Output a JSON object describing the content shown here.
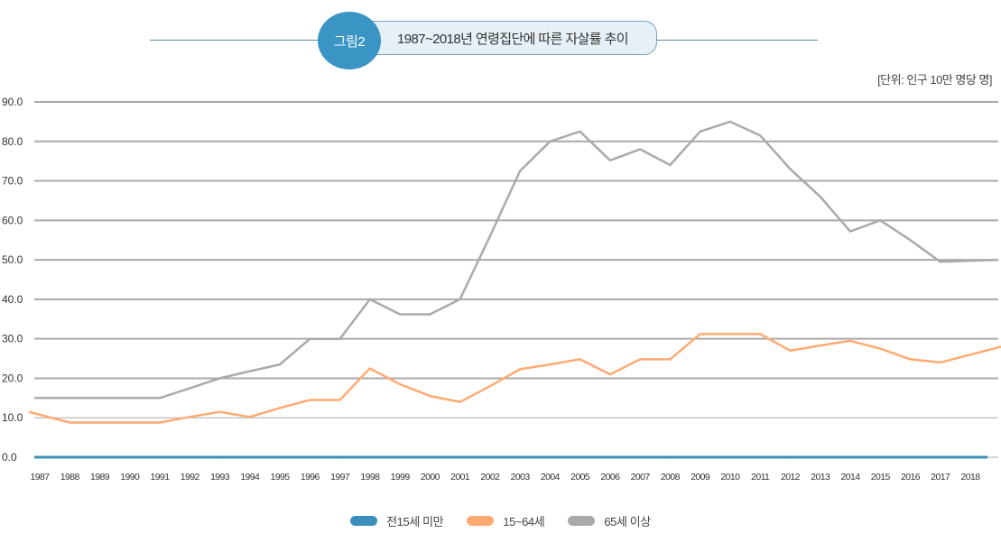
{
  "figure": {
    "badge": "그림2",
    "title": "1987~2018년 연령집단에 따른 자살률 추이",
    "unit": "[단위: 인구 10만 명당 명]"
  },
  "colors": {
    "accent": "#3a94c4",
    "under15": "#3a8fbd",
    "age15_64": "#ffaa72",
    "over65": "#aaaaaa",
    "grid": "#aaaaaa"
  },
  "chart_data": {
    "type": "line",
    "title": "1987~2018년 연령집단에 따른 자살률 추이",
    "xlabel": "",
    "ylabel": "",
    "unit": "[단위: 인구 10만 명당 명]",
    "ylim": [
      0,
      90
    ],
    "yticks": [
      "0.0",
      "10.0",
      "20.0",
      "30.0",
      "40.0",
      "50.0",
      "60.0",
      "70.0",
      "80.0",
      "90.0"
    ],
    "grid": true,
    "legend_position": "bottom-center",
    "categories": [
      "1987",
      "1988",
      "1989",
      "1990",
      "1991",
      "1992",
      "1993",
      "1994",
      "1995",
      "1996",
      "1997",
      "1998",
      "1999",
      "2000",
      "2001",
      "2002",
      "2003",
      "2004",
      "2005",
      "2006",
      "2007",
      "2008",
      "2009",
      "2010",
      "2011",
      "2012",
      "2013",
      "2014",
      "2015",
      "2016",
      "2017",
      "2018"
    ],
    "series": [
      {
        "name": "전15세 미만",
        "color": "#3a8fbd",
        "values": [
          0.0,
          0.0,
          0.0,
          0.0,
          0.0,
          0.0,
          0.0,
          0.0,
          0.0,
          0.0,
          0.0,
          0.0,
          0.0,
          0.0,
          0.0,
          0.0,
          0.0,
          0.0,
          0.0,
          0.0,
          0.0,
          0.0,
          0.0,
          0.0,
          0.0,
          0.0,
          0.0,
          0.0,
          0.0,
          0.0,
          0.0,
          0.0
        ]
      },
      {
        "name": "15~64세",
        "color": "#ffaa72",
        "values": [
          11.5,
          8.8,
          8.8,
          8.8,
          8.8,
          10.2,
          11.5,
          10.2,
          12.5,
          14.5,
          14.5,
          22.5,
          18.5,
          15.5,
          14.0,
          18.0,
          22.3,
          23.5,
          24.8,
          21.0,
          24.8,
          24.8,
          31.2,
          31.2,
          31.2,
          27.0,
          28.3,
          29.5,
          27.5,
          24.8,
          24.0,
          28.0
        ]
      },
      {
        "name": "65세 이상",
        "color": "#aaaaaa",
        "values": [
          15.0,
          15.0,
          15.0,
          15.0,
          15.0,
          17.5,
          20.0,
          21.8,
          23.5,
          30.0,
          30.0,
          40.0,
          36.2,
          36.2,
          40.0,
          56.0,
          72.5,
          80.0,
          82.5,
          75.2,
          78.0,
          74.0,
          82.5,
          85.0,
          81.5,
          73.0,
          66.0,
          57.2,
          60.0,
          55.0,
          49.5,
          50.0
        ]
      }
    ]
  },
  "legend": {
    "items": [
      {
        "label": "전15세 미만",
        "color": "#3a8fbd"
      },
      {
        "label": "15~64세",
        "color": "#ffaa72"
      },
      {
        "label": "65세 이상",
        "color": "#aaaaaa"
      }
    ]
  }
}
